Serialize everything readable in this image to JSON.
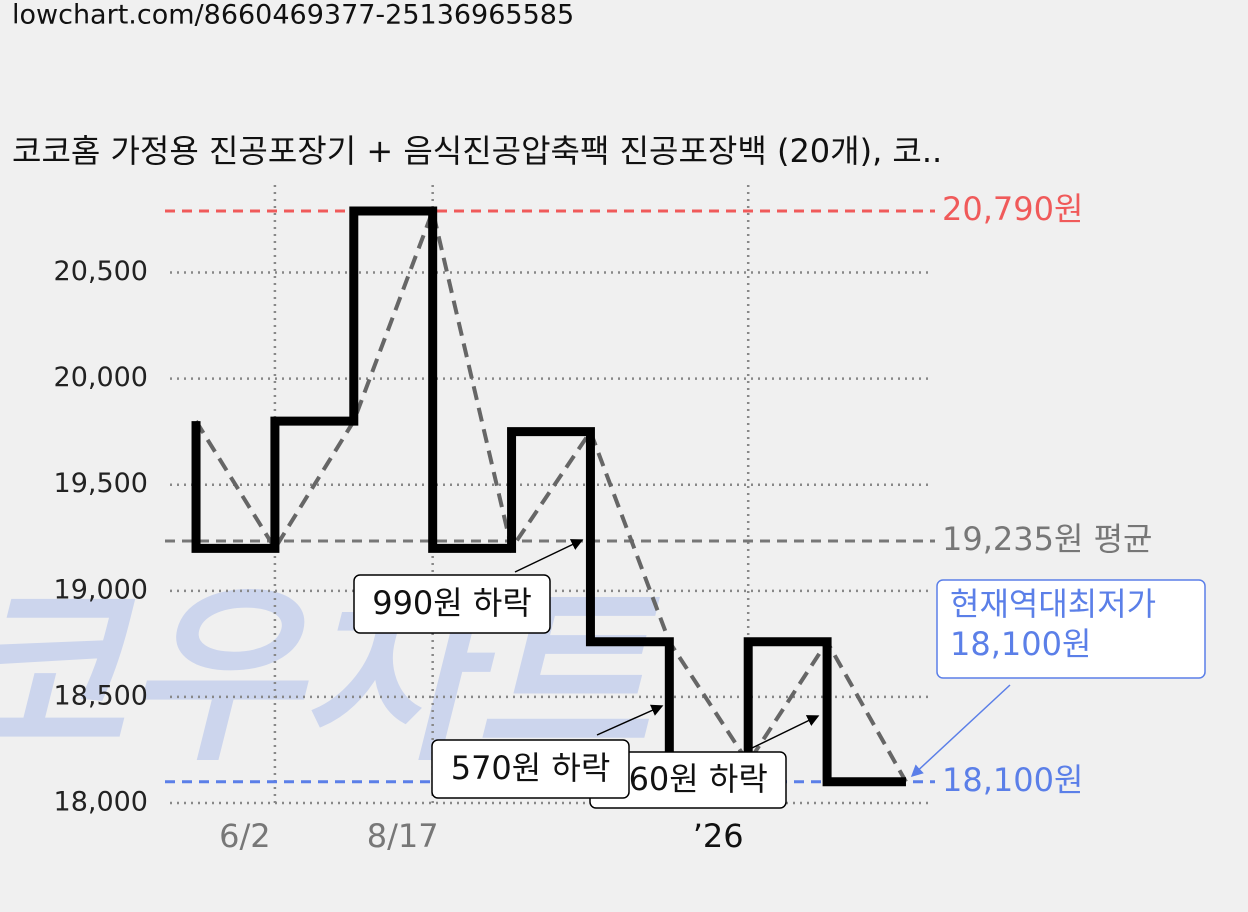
{
  "header": {
    "url": "lowchart.com/8660469377-25136965585"
  },
  "chart_data": {
    "type": "line",
    "title": "코코홈 가정용 진공포장기 + 음식진공압축팩 진공포장백 (20개), 코..",
    "watermark": "코우차트",
    "xlim": [
      -0.33,
      9.33
    ],
    "xticks": [
      {
        "value": 1,
        "label": "6/2"
      },
      {
        "value": 3,
        "label": "8/17"
      },
      {
        "value": 7,
        "label": "’26"
      }
    ],
    "ylim": [
      18000,
      20790
    ],
    "yticks": [
      {
        "value": 18000,
        "label": "18,000"
      },
      {
        "value": 18500,
        "label": "18,500"
      },
      {
        "value": 19000,
        "label": "19,000"
      },
      {
        "value": 19500,
        "label": "19,500"
      },
      {
        "value": 20000,
        "label": "20,000"
      },
      {
        "value": 20500,
        "label": "20,500"
      }
    ],
    "grid": true,
    "series": [
      {
        "x": [
          0,
          0,
          1,
          2,
          3,
          4,
          5,
          6,
          7,
          8,
          9
        ],
        "values": [
          19800,
          19200,
          19800,
          20790,
          19200,
          19750,
          18760,
          18190,
          18760,
          18100,
          18100
        ],
        "color": "#000000",
        "step": true
      },
      {
        "x": [
          0,
          1,
          2,
          3,
          4,
          5,
          6,
          7,
          8,
          9
        ],
        "values": [
          19800,
          19200,
          19800,
          20790,
          19200,
          19750,
          18760,
          18190,
          18760,
          18100
        ],
        "color": "#666666",
        "dashed": true
      }
    ],
    "reference_lines": [
      {
        "value": 20790,
        "label": "20,790원",
        "color": "#f05a5a"
      },
      {
        "value": 19235,
        "label": "19,235원 평균",
        "color": "#777777"
      },
      {
        "value": 18100,
        "label": "18,100원",
        "color": "#5b7fe8"
      }
    ],
    "annotations": [
      {
        "text": "660원 하락"
      },
      {
        "text": "570원 하락"
      },
      {
        "text": "990원 하락"
      }
    ],
    "callout": {
      "lines": [
        "현재역대최저가",
        "18,100원"
      ],
      "color": "#5b7fe8"
    }
  }
}
